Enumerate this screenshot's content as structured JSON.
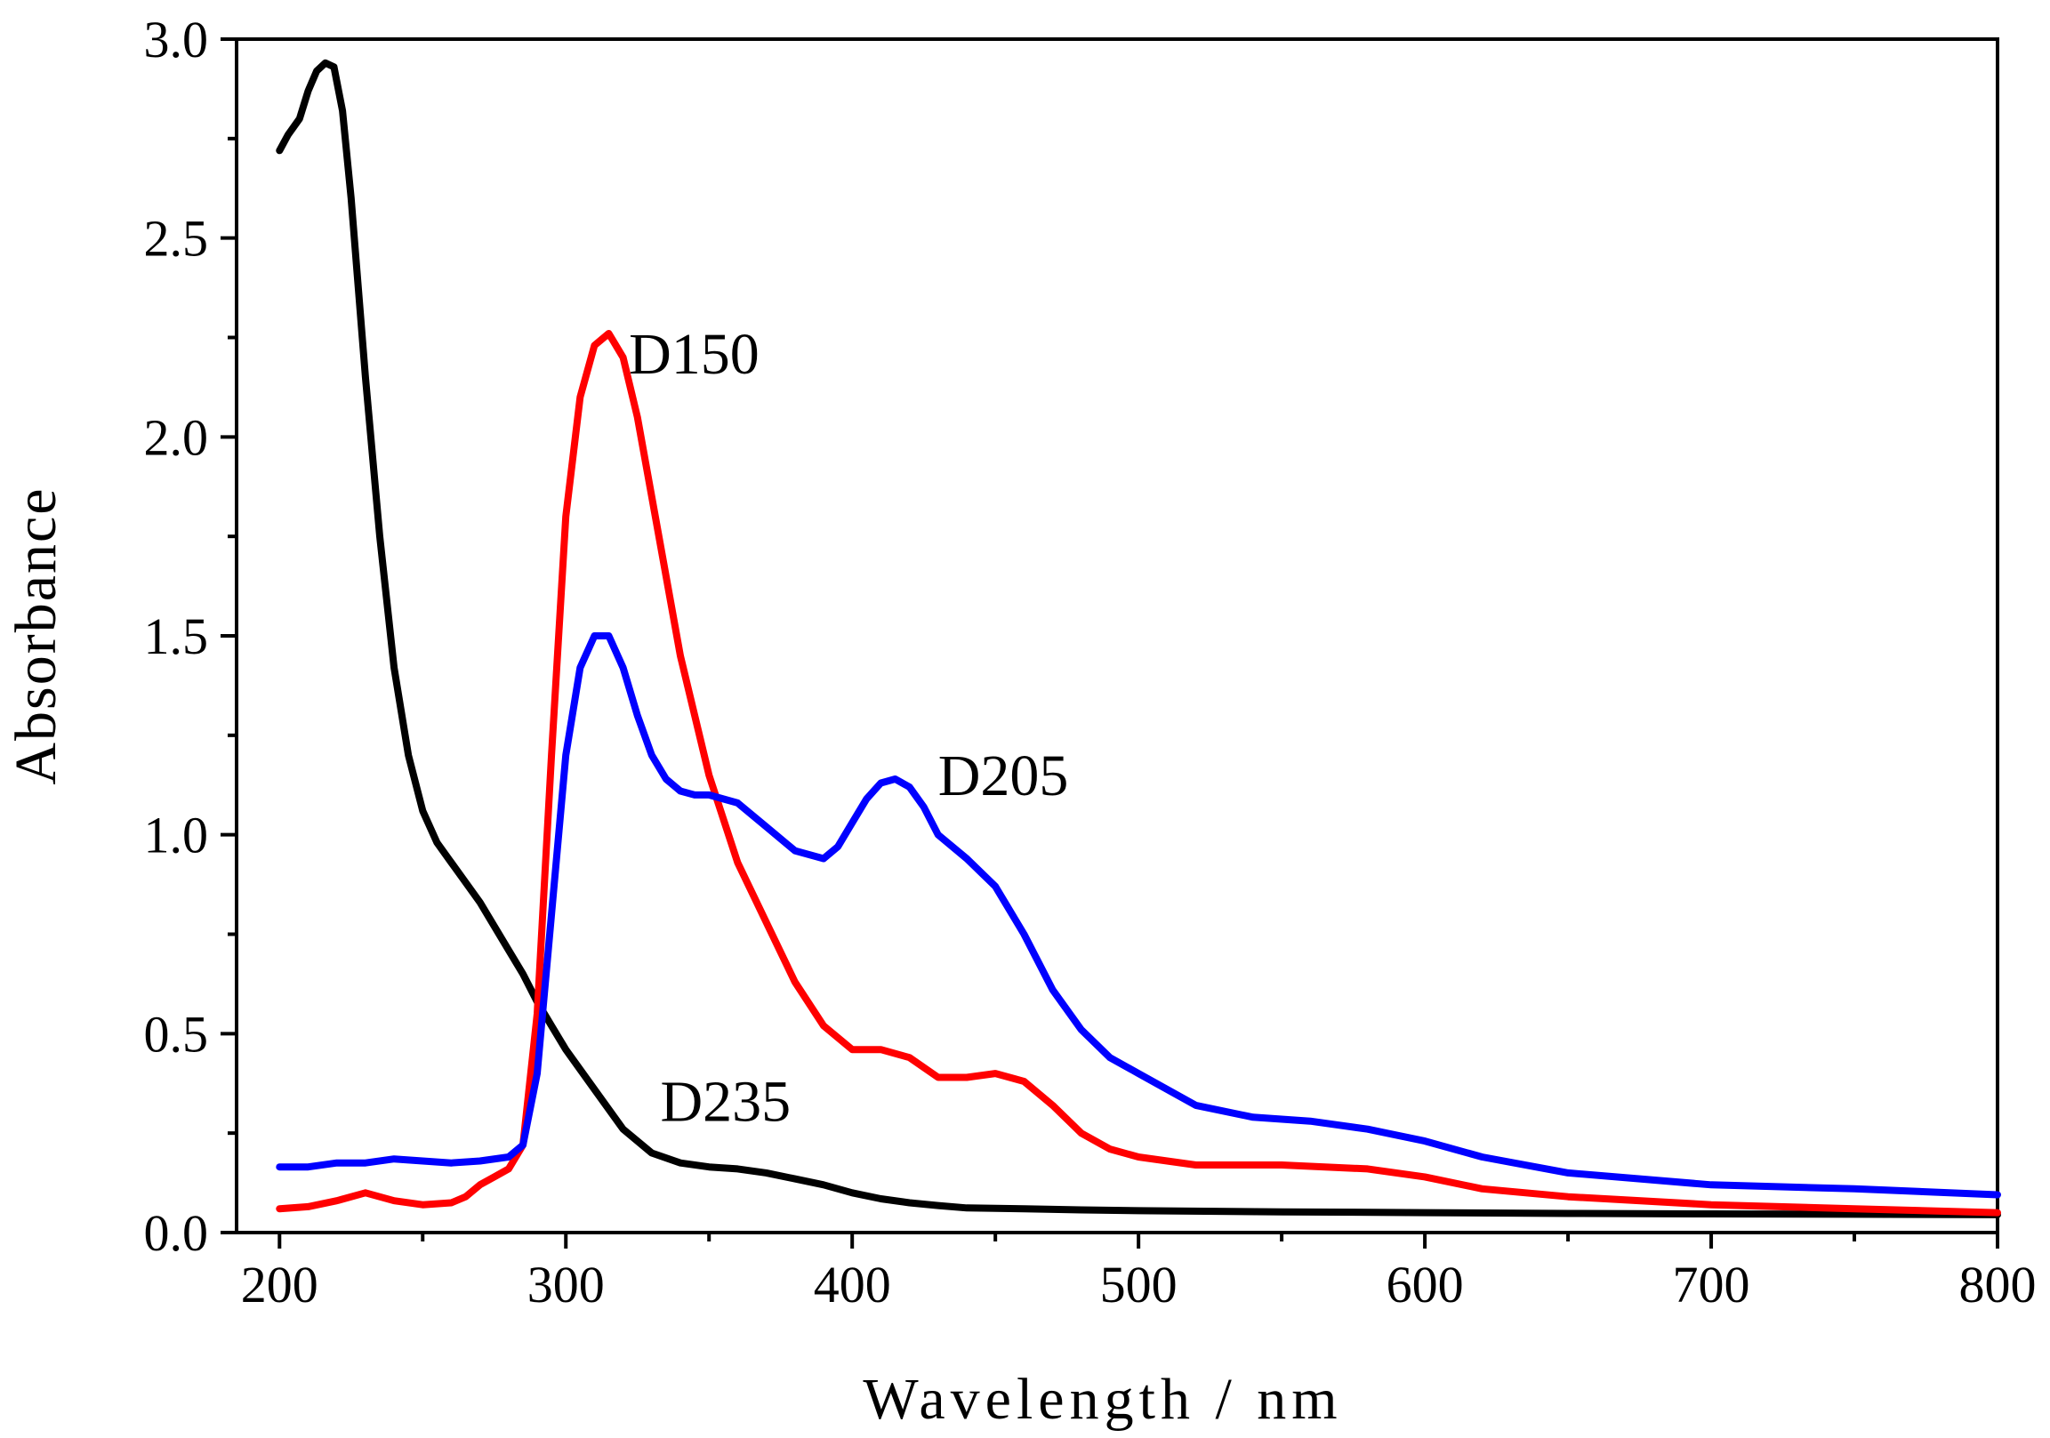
{
  "chart_data": {
    "type": "line",
    "title": "",
    "xlabel": "Wavelength / nm",
    "ylabel": "Absorbance",
    "xlim": [
      185,
      800
    ],
    "ylim": [
      0,
      3.0
    ],
    "x_ticks": [
      200,
      300,
      400,
      500,
      600,
      700,
      800
    ],
    "x_tick_labels": [
      "200",
      "300",
      "400",
      "500",
      "600",
      "700",
      "800"
    ],
    "y_ticks": [
      0,
      0.5,
      1.0,
      1.5,
      2.0,
      2.5,
      3.0
    ],
    "y_tick_labels": [
      "0.0",
      "0.5",
      "1.0",
      "1.5",
      "2.0",
      "2.5",
      "3.0"
    ],
    "x_minor_step": 50,
    "y_minor_step": 0.25,
    "grid": false,
    "series": [
      {
        "name": "D235",
        "color": "#000000",
        "label_anchor": [
          333,
          0.28
        ],
        "x": [
          200,
          203,
          207,
          210,
          213,
          216,
          219,
          222,
          225,
          230,
          235,
          240,
          245,
          250,
          255,
          260,
          265,
          270,
          275,
          280,
          285,
          290,
          295,
          300,
          310,
          320,
          330,
          340,
          350,
          360,
          370,
          380,
          390,
          400,
          410,
          420,
          430,
          440,
          460,
          480,
          500,
          550,
          600,
          650,
          700,
          750,
          800
        ],
        "y": [
          2.72,
          2.76,
          2.8,
          2.87,
          2.92,
          2.94,
          2.93,
          2.82,
          2.6,
          2.15,
          1.75,
          1.42,
          1.2,
          1.06,
          0.98,
          0.93,
          0.88,
          0.83,
          0.77,
          0.71,
          0.65,
          0.58,
          0.52,
          0.46,
          0.36,
          0.26,
          0.2,
          0.175,
          0.165,
          0.16,
          0.15,
          0.135,
          0.12,
          0.1,
          0.085,
          0.075,
          0.068,
          0.062,
          0.06,
          0.057,
          0.055,
          0.052,
          0.05,
          0.048,
          0.047,
          0.046,
          0.045
        ]
      },
      {
        "name": "D150",
        "color": "#ff0000",
        "label_anchor": [
          322,
          2.16
        ],
        "x": [
          200,
          210,
          220,
          230,
          240,
          250,
          260,
          265,
          270,
          275,
          280,
          285,
          290,
          295,
          300,
          305,
          310,
          315,
          320,
          325,
          330,
          335,
          340,
          350,
          360,
          370,
          380,
          390,
          400,
          410,
          420,
          430,
          440,
          450,
          460,
          470,
          480,
          490,
          500,
          520,
          550,
          580,
          600,
          620,
          650,
          700,
          750,
          800
        ],
        "y": [
          0.06,
          0.065,
          0.08,
          0.1,
          0.08,
          0.07,
          0.075,
          0.09,
          0.12,
          0.14,
          0.16,
          0.22,
          0.55,
          1.2,
          1.8,
          2.1,
          2.23,
          2.26,
          2.2,
          2.05,
          1.85,
          1.65,
          1.45,
          1.15,
          0.93,
          0.78,
          0.63,
          0.52,
          0.46,
          0.46,
          0.44,
          0.39,
          0.39,
          0.4,
          0.38,
          0.32,
          0.25,
          0.21,
          0.19,
          0.17,
          0.17,
          0.16,
          0.14,
          0.11,
          0.09,
          0.07,
          0.06,
          0.05
        ]
      },
      {
        "name": "D205",
        "color": "#0000ff",
        "label_anchor": [
          430,
          1.1
        ],
        "x": [
          200,
          210,
          220,
          230,
          240,
          250,
          260,
          270,
          280,
          285,
          290,
          295,
          300,
          305,
          310,
          315,
          320,
          325,
          330,
          335,
          340,
          345,
          350,
          360,
          370,
          380,
          390,
          395,
          400,
          405,
          410,
          415,
          420,
          425,
          430,
          440,
          450,
          460,
          470,
          480,
          490,
          500,
          520,
          540,
          560,
          580,
          600,
          620,
          650,
          700,
          750,
          800
        ],
        "y": [
          0.165,
          0.165,
          0.175,
          0.175,
          0.185,
          0.18,
          0.175,
          0.18,
          0.19,
          0.22,
          0.4,
          0.8,
          1.2,
          1.42,
          1.5,
          1.5,
          1.42,
          1.3,
          1.2,
          1.14,
          1.11,
          1.1,
          1.1,
          1.08,
          1.02,
          0.96,
          0.94,
          0.97,
          1.03,
          1.09,
          1.13,
          1.14,
          1.12,
          1.07,
          1.0,
          0.94,
          0.87,
          0.75,
          0.61,
          0.51,
          0.44,
          0.4,
          0.32,
          0.29,
          0.28,
          0.26,
          0.23,
          0.19,
          0.15,
          0.12,
          0.11,
          0.095
        ]
      }
    ]
  }
}
